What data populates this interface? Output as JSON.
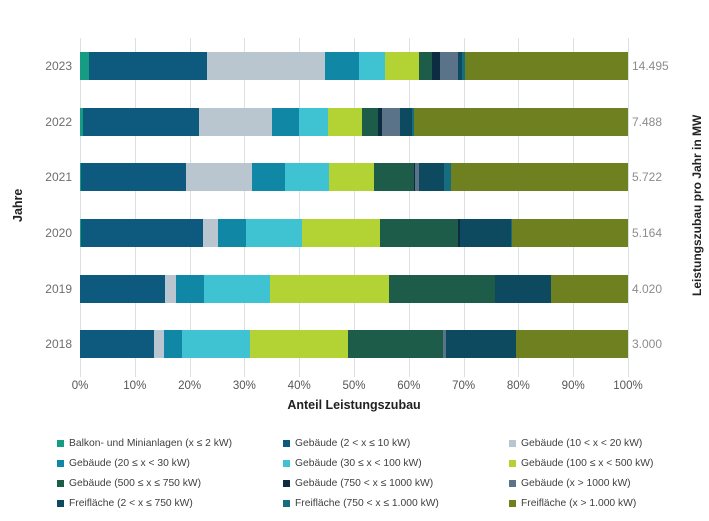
{
  "chart_data": {
    "type": "bar",
    "orientation": "horizontal-stacked",
    "xlabel": "Anteil Leistungszubau",
    "ylabel_left": "Jahre",
    "ylabel_right": "Leistungszubau pro Jahr in MW",
    "x_ticks": [
      "0%",
      "10%",
      "20%",
      "30%",
      "40%",
      "50%",
      "60%",
      "70%",
      "80%",
      "90%",
      "100%"
    ],
    "xlim": [
      0,
      100
    ],
    "grid": true,
    "legend_position": "bottom",
    "categories": [
      "2023",
      "2022",
      "2021",
      "2020",
      "2019",
      "2018"
    ],
    "right_values": [
      "14.495",
      "7.488",
      "5.722",
      "5.164",
      "4.020",
      "3.000"
    ],
    "series": [
      {
        "name": "Balkon- und Minianlagen (x ≤ 2 kW)",
        "color": "#169c82",
        "values": [
          1.7,
          0.6,
          0.2,
          0.1,
          0,
          0
        ]
      },
      {
        "name": "Gebäude (2 < x ≤ 10 kW)",
        "color": "#0e5a7e",
        "values": [
          21.5,
          21.1,
          19.1,
          22.3,
          15.5,
          13.5
        ]
      },
      {
        "name": "Gebäude (10 < x < 20 kW)",
        "color": "#b9c6d0",
        "values": [
          21.5,
          13.4,
          12.0,
          2.7,
          2.1,
          1.8
        ]
      },
      {
        "name": "Gebäude (20 ≤ x < 30 kW)",
        "color": "#1088a5",
        "values": [
          6.2,
          4.8,
          6.1,
          5.2,
          5.0,
          3.4
        ]
      },
      {
        "name": "Gebäude (30 ≤ x < 100 kW)",
        "color": "#3fc3d2",
        "values": [
          4.7,
          5.3,
          8.0,
          10.2,
          12.0,
          12.4
        ]
      },
      {
        "name": "Gebäude (100 ≤ x < 500 kW)",
        "color": "#b3d233",
        "values": [
          6.2,
          6.2,
          8.3,
          14.3,
          21.8,
          17.8
        ]
      },
      {
        "name": "Gebäude (500 ≤ x ≤ 750 kW)",
        "color": "#1c5c48",
        "values": [
          2.5,
          3.0,
          7.2,
          14.2,
          19.3,
          17.4
        ]
      },
      {
        "name": "Gebäude (750 < x ≤ 1000 kW)",
        "color": "#0d2c42",
        "values": [
          1.4,
          0.8,
          0.2,
          0.3,
          0,
          0
        ]
      },
      {
        "name": "Gebäude (x > 1000 kW)",
        "color": "#5a7389",
        "values": [
          3.2,
          3.2,
          0.7,
          0,
          0,
          0.5
        ]
      },
      {
        "name": "Freifläche (2 < x ≤ 750 kW)",
        "color": "#0d4a60",
        "values": [
          0.8,
          2.2,
          4.7,
          9.3,
          10.2,
          12.8
        ]
      },
      {
        "name": "Freifläche (750 < x ≤ 1.000 kW)",
        "color": "#176d80",
        "values": [
          0.5,
          0.3,
          1.3,
          0.2,
          0,
          0
        ]
      },
      {
        "name": "Freifläche (x > 1.000 kW)",
        "color": "#6f8020",
        "values": [
          29.8,
          39.1,
          32.2,
          21.2,
          14.1,
          20.4
        ]
      }
    ]
  }
}
